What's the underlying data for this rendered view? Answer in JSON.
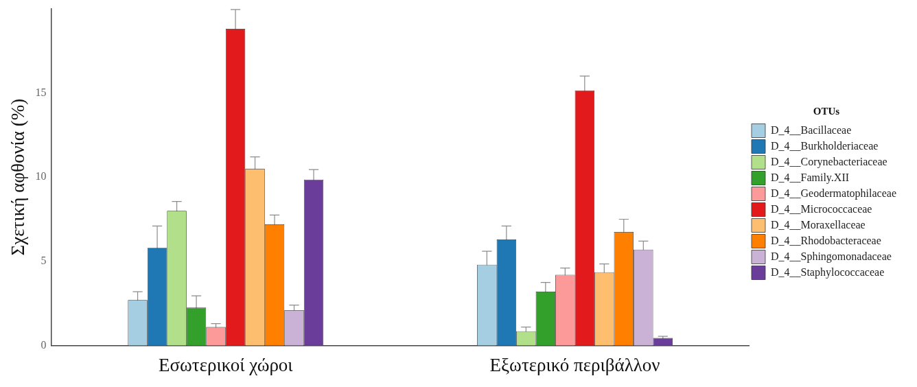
{
  "chart_data": {
    "type": "bar",
    "ylabel": "Σχετική αφθονία (%)",
    "legend_title": "OTUs",
    "legend": "right",
    "grid": false,
    "categories": [
      "Εσωτερικοί χώροι",
      "Εξωτερικό περιβάλλον"
    ],
    "ylim": [
      0,
      20
    ],
    "yticks": [
      0,
      5,
      10,
      15
    ],
    "series": [
      {
        "name": "D_4__Bacillaceae",
        "color": "#a6cee3",
        "values": [
          2.7,
          4.8
        ],
        "errors": [
          0.5,
          0.8
        ]
      },
      {
        "name": "D_4__Burkholderiaceae",
        "color": "#1f78b4",
        "values": [
          5.8,
          6.3
        ],
        "errors": [
          1.3,
          0.8
        ]
      },
      {
        "name": "D_4__Corynebacteriaceae",
        "color": "#b2df8a",
        "values": [
          8.0,
          0.85
        ],
        "errors": [
          0.55,
          0.25
        ]
      },
      {
        "name": "D_4__Family.XII",
        "color": "#33a02c",
        "values": [
          2.25,
          3.2
        ],
        "errors": [
          0.7,
          0.55
        ]
      },
      {
        "name": "D_4__Geodermatophilaceae",
        "color": "#fb9a99",
        "values": [
          1.1,
          4.2
        ],
        "errors": [
          0.2,
          0.4
        ]
      },
      {
        "name": "D_4__Micrococcaceae",
        "color": "#e31a1c",
        "values": [
          18.8,
          15.15
        ],
        "errors": [
          1.15,
          0.85
        ]
      },
      {
        "name": "D_4__Moraxellaceae",
        "color": "#fdbf6f",
        "values": [
          10.5,
          4.35
        ],
        "errors": [
          0.7,
          0.5
        ]
      },
      {
        "name": "D_4__Rhodobacteraceae",
        "color": "#ff7f00",
        "values": [
          7.2,
          6.75
        ],
        "errors": [
          0.55,
          0.75
        ]
      },
      {
        "name": "D_4__Sphingomonadaceae",
        "color": "#cab2d6",
        "values": [
          2.1,
          5.7
        ],
        "errors": [
          0.3,
          0.5
        ]
      },
      {
        "name": "D_4__Staphylococcaceae",
        "color": "#6a3d9a",
        "values": [
          9.85,
          0.45
        ],
        "errors": [
          0.6,
          0.1
        ]
      }
    ]
  }
}
